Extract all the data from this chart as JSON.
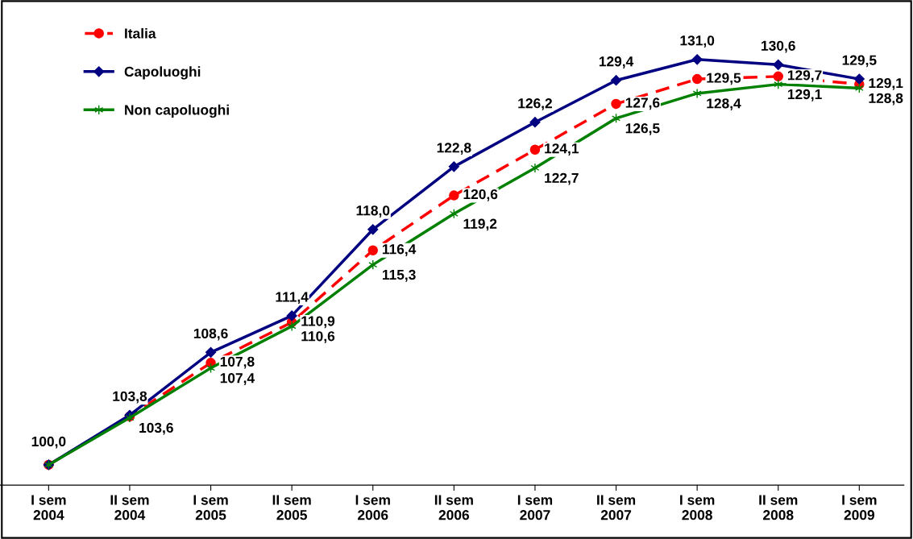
{
  "chart_data": {
    "type": "line",
    "categories": [
      "I sem\n2004",
      "II sem\n2004",
      "I sem\n2005",
      "II sem\n2005",
      "I sem\n2006",
      "II sem\n2006",
      "I sem\n2007",
      "II sem\n2007",
      "I sem\n2008",
      "II sem\n2008",
      "I sem\n2009"
    ],
    "series": [
      {
        "name": "Italia",
        "color": "#ff0000",
        "marker": "circle",
        "line_style": "dashed",
        "values": [
          100.0,
          103.7,
          107.8,
          110.9,
          116.4,
          120.6,
          124.1,
          127.6,
          129.5,
          129.7,
          129.1
        ],
        "value_labels": [
          "100,0",
          null,
          "107,8",
          "110,9",
          "116,4",
          "120,6",
          "124,1",
          "127,6",
          "129,5",
          "129,7",
          "129,1"
        ]
      },
      {
        "name": "Capoluoghi",
        "color": "#000080",
        "marker": "diamond",
        "line_style": "solid",
        "values": [
          100.0,
          103.8,
          108.6,
          111.4,
          118.0,
          122.8,
          126.2,
          129.4,
          131.0,
          130.6,
          129.5
        ],
        "value_labels": [
          null,
          "103,8",
          "108,6",
          "111,4",
          "118,0",
          "122,8",
          "126,2",
          "129,4",
          "131,0",
          "130,6",
          "129,5"
        ]
      },
      {
        "name": "Non capoluoghi",
        "color": "#008000",
        "marker": "cross",
        "line_style": "solid",
        "values": [
          100.0,
          103.6,
          107.4,
          110.6,
          115.3,
          119.2,
          122.7,
          126.5,
          128.4,
          129.1,
          128.8
        ],
        "value_labels": [
          null,
          "103,6",
          "107,4",
          "110,6",
          "115,3",
          "119,2",
          "122,7",
          "126,5",
          "128,4",
          "129,1",
          "128,8"
        ]
      }
    ],
    "legend": "top left",
    "grid": false
  }
}
